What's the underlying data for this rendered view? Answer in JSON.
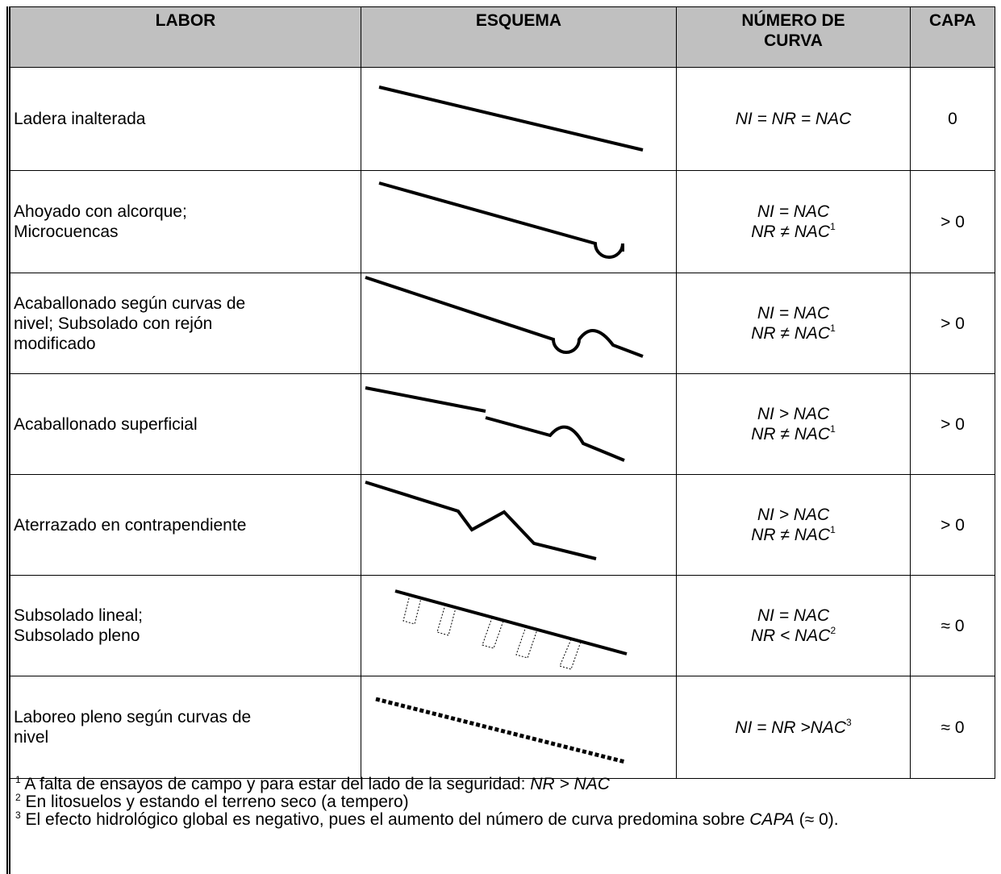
{
  "header": [
    [
      "LABOR"
    ],
    [
      "ESQUEMA"
    ],
    [
      "NÚMERO DE",
      "CURVA"
    ],
    [
      "CAPA"
    ]
  ],
  "rows": [
    {
      "labor": [
        "Ladera inalterada"
      ],
      "curva": [
        [
          {
            "text": "NI = NR = NAC"
          }
        ]
      ],
      "capa": "0"
    },
    {
      "labor": [
        "Ahoyado con alcorque;",
        "Microcuencas"
      ],
      "curva": [
        [
          {
            "text": "NI = NAC"
          }
        ],
        [
          {
            "text": "NR ≠ NAC"
          },
          {
            "sup": "1"
          }
        ]
      ],
      "capa": "> 0"
    },
    {
      "labor": [
        "Acaballonado según curvas de",
        "nivel; Subsolado con rejón",
        "modificado"
      ],
      "curva": [
        [
          {
            "text": "NI = NAC"
          }
        ],
        [
          {
            "text": "NR ≠ NAC"
          },
          {
            "sup": "1"
          }
        ]
      ],
      "capa": "> 0"
    },
    {
      "labor": [
        "Acaballonado superficial"
      ],
      "curva": [
        [
          {
            "text": "NI > NAC"
          }
        ],
        [
          {
            "text": "NR ≠ NAC"
          },
          {
            "sup": "1"
          }
        ]
      ],
      "capa": "> 0"
    },
    {
      "labor": [
        "Aterrazado en contrapendiente"
      ],
      "curva": [
        [
          {
            "text": "NI > NAC"
          }
        ],
        [
          {
            "text": "NR ≠ NAC"
          },
          {
            "sup": "1"
          }
        ]
      ],
      "capa": "> 0"
    },
    {
      "labor": [
        "Subsolado lineal;",
        "Subsolado pleno"
      ],
      "curva": [
        [
          {
            "text": "NI = NAC"
          }
        ],
        [
          {
            "text": "NR < NAC"
          },
          {
            "sup": "2"
          }
        ]
      ],
      "capa": "≈ 0"
    },
    {
      "labor": [
        "Laboreo pleno según curvas de",
        "nivel"
      ],
      "curva": [
        [
          {
            "text": "NI = NR >NAC"
          },
          {
            "sup": "3"
          }
        ]
      ],
      "capa": "≈ 0"
    }
  ],
  "footnotes": [
    {
      "mark": "1",
      "parts": [
        {
          "text": "A falta de ensayos de campo y para estar del lado de la seguridad: "
        },
        {
          "italic": "NR > NAC"
        }
      ]
    },
    {
      "mark": "2",
      "parts": [
        {
          "text": "En litosuelos y estando el terreno seco (a tempero)"
        }
      ]
    },
    {
      "mark": "3",
      "parts": [
        {
          "text": "El efecto hidrológico global es negativo, pues el aumento del número de curva predomina sobre "
        },
        {
          "italic": "CAPA"
        },
        {
          "text": " (≈ 0)."
        }
      ]
    }
  ]
}
